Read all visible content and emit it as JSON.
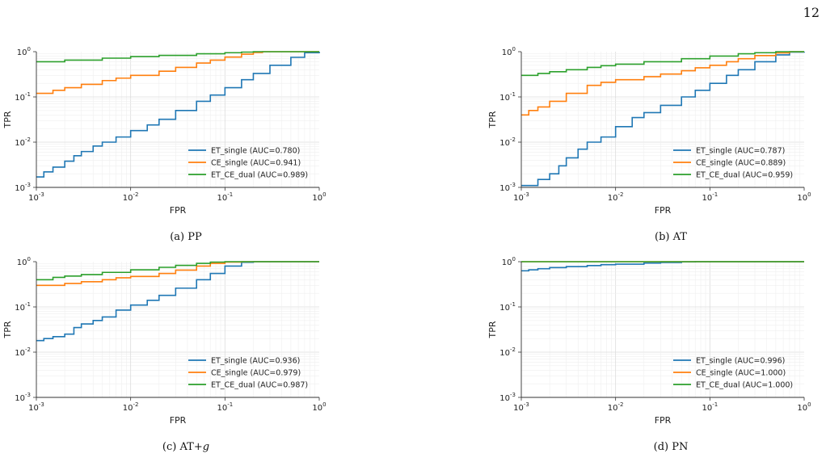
{
  "page_number": "12",
  "chart_data": [
    {
      "type": "line",
      "caption": "(a) PP",
      "xlabel": "FPR",
      "ylabel": "TPR",
      "xscale": "log",
      "yscale": "log",
      "xlim": [
        0.001,
        1
      ],
      "ylim": [
        0.001,
        1
      ],
      "grid": true,
      "legend_position": "lower-right",
      "series": [
        {
          "name": "ET_single (AUC=0.780)",
          "color": "#1f77b4",
          "x": [
            0.001,
            0.0012,
            0.0015,
            0.002,
            0.0025,
            0.003,
            0.004,
            0.005,
            0.007,
            0.01,
            0.015,
            0.02,
            0.03,
            0.05,
            0.07,
            0.1,
            0.15,
            0.2,
            0.3,
            0.5,
            0.7,
            1.0
          ],
          "y": [
            0.0017,
            0.0022,
            0.0028,
            0.0038,
            0.005,
            0.0062,
            0.0082,
            0.01,
            0.013,
            0.018,
            0.024,
            0.032,
            0.05,
            0.08,
            0.11,
            0.16,
            0.24,
            0.33,
            0.5,
            0.75,
            0.95,
            1.0
          ]
        },
        {
          "name": "CE_single (AUC=0.941)",
          "color": "#ff7f0e",
          "x": [
            0.001,
            0.0015,
            0.002,
            0.003,
            0.005,
            0.007,
            0.01,
            0.02,
            0.03,
            0.05,
            0.07,
            0.1,
            0.15,
            0.2,
            0.25,
            1.0
          ],
          "y": [
            0.12,
            0.14,
            0.16,
            0.19,
            0.23,
            0.26,
            0.3,
            0.37,
            0.45,
            0.56,
            0.65,
            0.76,
            0.88,
            0.96,
            1.0,
            1.0
          ]
        },
        {
          "name": "ET_CE_dual (AUC=0.989)",
          "color": "#2ca02c",
          "x": [
            0.001,
            0.002,
            0.005,
            0.01,
            0.02,
            0.05,
            0.1,
            0.15,
            0.2,
            1.0
          ],
          "y": [
            0.6,
            0.65,
            0.72,
            0.78,
            0.83,
            0.9,
            0.95,
            0.98,
            1.0,
            1.0
          ]
        }
      ]
    },
    {
      "type": "line",
      "caption": "(b) AT",
      "xlabel": "FPR",
      "ylabel": "TPR",
      "xscale": "log",
      "yscale": "log",
      "xlim": [
        0.001,
        1
      ],
      "ylim": [
        0.001,
        1
      ],
      "grid": true,
      "legend_position": "lower-right",
      "series": [
        {
          "name": "ET_single (AUC=0.787)",
          "color": "#1f77b4",
          "x": [
            0.001,
            0.0012,
            0.0015,
            0.002,
            0.0025,
            0.003,
            0.004,
            0.005,
            0.007,
            0.01,
            0.015,
            0.02,
            0.03,
            0.05,
            0.07,
            0.1,
            0.15,
            0.2,
            0.3,
            0.5,
            0.7,
            1.0
          ],
          "y": [
            0.0011,
            0.0011,
            0.0015,
            0.002,
            0.003,
            0.0045,
            0.007,
            0.01,
            0.013,
            0.022,
            0.035,
            0.045,
            0.065,
            0.1,
            0.14,
            0.2,
            0.3,
            0.4,
            0.6,
            0.85,
            0.98,
            1.0
          ]
        },
        {
          "name": "CE_single (AUC=0.889)",
          "color": "#ff7f0e",
          "x": [
            0.001,
            0.0012,
            0.0015,
            0.002,
            0.003,
            0.005,
            0.007,
            0.01,
            0.02,
            0.03,
            0.05,
            0.07,
            0.1,
            0.15,
            0.2,
            0.3,
            0.5,
            0.7,
            1.0
          ],
          "y": [
            0.04,
            0.05,
            0.06,
            0.08,
            0.12,
            0.18,
            0.21,
            0.24,
            0.28,
            0.32,
            0.38,
            0.44,
            0.5,
            0.6,
            0.7,
            0.82,
            0.94,
            1.0,
            1.0
          ]
        },
        {
          "name": "ET_CE_dual (AUC=0.959)",
          "color": "#2ca02c",
          "x": [
            0.001,
            0.0015,
            0.002,
            0.003,
            0.005,
            0.007,
            0.01,
            0.02,
            0.05,
            0.1,
            0.2,
            0.3,
            0.5,
            1.0
          ],
          "y": [
            0.3,
            0.33,
            0.36,
            0.4,
            0.45,
            0.49,
            0.53,
            0.6,
            0.7,
            0.8,
            0.9,
            0.95,
            1.0,
            1.0
          ]
        }
      ]
    },
    {
      "type": "line",
      "caption": "(c) AT+g",
      "xlabel": "FPR",
      "ylabel": "TPR",
      "xscale": "log",
      "yscale": "log",
      "xlim": [
        0.001,
        1
      ],
      "ylim": [
        0.001,
        1
      ],
      "grid": true,
      "legend_position": "lower-right",
      "series": [
        {
          "name": "ET_single (AUC=0.936)",
          "color": "#1f77b4",
          "x": [
            0.001,
            0.0012,
            0.0015,
            0.002,
            0.0025,
            0.003,
            0.004,
            0.005,
            0.007,
            0.01,
            0.015,
            0.02,
            0.03,
            0.05,
            0.07,
            0.1,
            0.15,
            0.2,
            1.0
          ],
          "y": [
            0.018,
            0.02,
            0.022,
            0.025,
            0.035,
            0.042,
            0.05,
            0.06,
            0.085,
            0.11,
            0.14,
            0.18,
            0.26,
            0.4,
            0.55,
            0.8,
            0.97,
            1.0,
            1.0
          ]
        },
        {
          "name": "CE_single (AUC=0.979)",
          "color": "#ff7f0e",
          "x": [
            0.001,
            0.002,
            0.003,
            0.005,
            0.007,
            0.01,
            0.02,
            0.03,
            0.05,
            0.07,
            0.1,
            0.15,
            1.0
          ],
          "y": [
            0.3,
            0.33,
            0.36,
            0.4,
            0.44,
            0.47,
            0.55,
            0.65,
            0.8,
            0.92,
            0.98,
            1.0,
            1.0
          ]
        },
        {
          "name": "ET_CE_dual (AUC=0.987)",
          "color": "#2ca02c",
          "x": [
            0.001,
            0.0015,
            0.002,
            0.003,
            0.005,
            0.01,
            0.02,
            0.03,
            0.05,
            0.07,
            0.1,
            1.0
          ],
          "y": [
            0.4,
            0.45,
            0.48,
            0.52,
            0.58,
            0.66,
            0.75,
            0.83,
            0.92,
            0.98,
            1.0,
            1.0
          ]
        }
      ]
    },
    {
      "type": "line",
      "caption": "(d) PN",
      "xlabel": "FPR",
      "ylabel": "TPR",
      "xscale": "log",
      "yscale": "log",
      "xlim": [
        0.001,
        1
      ],
      "ylim": [
        0.001,
        1
      ],
      "grid": true,
      "legend_position": "lower-right",
      "series": [
        {
          "name": "ET_single (AUC=0.996)",
          "color": "#1f77b4",
          "x": [
            0.001,
            0.0012,
            0.0015,
            0.002,
            0.003,
            0.005,
            0.007,
            0.01,
            0.02,
            0.03,
            0.05,
            0.07,
            1.0
          ],
          "y": [
            0.63,
            0.66,
            0.7,
            0.74,
            0.78,
            0.82,
            0.86,
            0.88,
            0.93,
            0.96,
            0.99,
            1.0,
            1.0
          ]
        },
        {
          "name": "CE_single (AUC=1.000)",
          "color": "#ff7f0e",
          "x": [
            0.001,
            1.0
          ],
          "y": [
            1.0,
            1.0
          ]
        },
        {
          "name": "ET_CE_dual (AUC=1.000)",
          "color": "#2ca02c",
          "x": [
            0.001,
            1.0
          ],
          "y": [
            1.0,
            1.0
          ]
        }
      ]
    }
  ]
}
